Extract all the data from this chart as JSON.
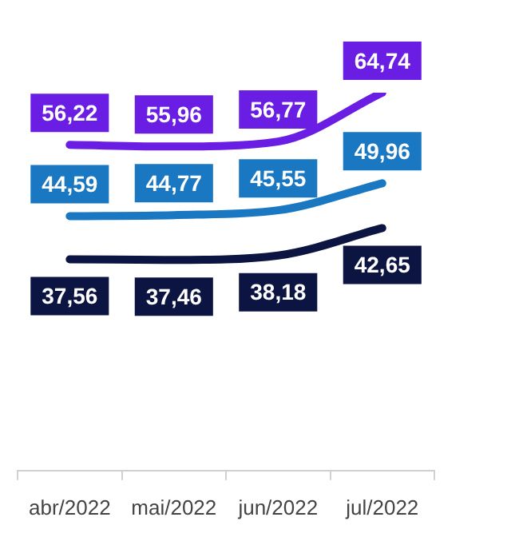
{
  "chart_data": {
    "type": "line",
    "categories": [
      "abr/2022",
      "mai/2022",
      "jun/2022",
      "jul/2022"
    ],
    "series": [
      {
        "color": "#6b1ee3",
        "values": [
          56.22,
          55.96,
          56.77,
          64.74
        ],
        "value_labels": [
          "56,22",
          "55,96",
          "56,77",
          "64,74"
        ]
      },
      {
        "color": "#1a78c2",
        "values": [
          44.59,
          44.77,
          45.55,
          49.96
        ],
        "value_labels": [
          "44,59",
          "44,77",
          "45,55",
          "49,96"
        ]
      },
      {
        "color": "#0c1442",
        "values": [
          37.56,
          37.46,
          38.18,
          42.65
        ],
        "value_labels": [
          "37,56",
          "37,46",
          "38,18",
          "42,65"
        ]
      }
    ],
    "grid": false,
    "legend": false,
    "marker": "none",
    "line_style": "solid",
    "tick_labels": "x"
  }
}
